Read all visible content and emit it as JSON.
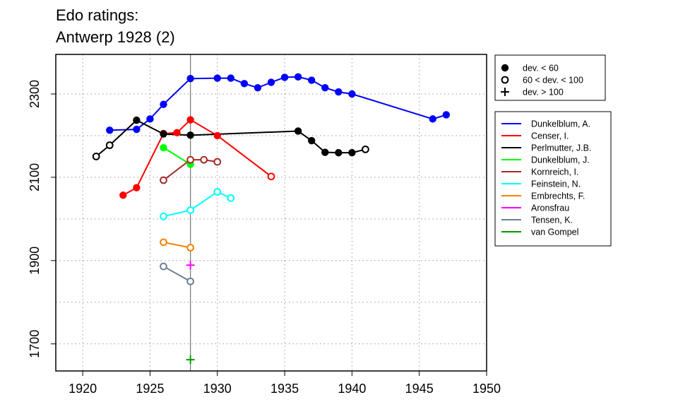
{
  "chart_data": {
    "type": "line",
    "title": [
      "Edo ratings:",
      "Antwerp 1928 (2)"
    ],
    "xlabel": "",
    "ylabel": "",
    "xlim": [
      1918,
      1950
    ],
    "ylim": [
      1635,
      2395
    ],
    "x_ticks": [
      1920,
      1925,
      1930,
      1935,
      1940,
      1945,
      1950
    ],
    "y_ticks": [
      1700,
      1900,
      2100,
      2300
    ],
    "grid": true,
    "marker_legend": {
      "placement": "top-right",
      "entries": [
        {
          "symbol": "filled",
          "label": "dev. < 60"
        },
        {
          "symbol": "open",
          "label": "60 < dev. < 100"
        },
        {
          "symbol": "plus",
          "label": "dev. > 100"
        }
      ]
    },
    "event_line": {
      "x": 1928,
      "color": "#808080"
    },
    "series_legend_placement": "right",
    "series": [
      {
        "name": "Dunkelblum, A.",
        "color": "#0000ff",
        "points": [
          {
            "x": 1922,
            "y": 2213,
            "m": "filled"
          },
          {
            "x": 1924,
            "y": 2215,
            "m": "filled"
          },
          {
            "x": 1925,
            "y": 2240,
            "m": "filled"
          },
          {
            "x": 1926,
            "y": 2275,
            "m": "filled"
          },
          {
            "x": 1928,
            "y": 2337,
            "m": "filled"
          },
          {
            "x": 1930,
            "y": 2338,
            "m": "filled"
          },
          {
            "x": 1931,
            "y": 2338,
            "m": "filled"
          },
          {
            "x": 1932,
            "y": 2325,
            "m": "filled"
          },
          {
            "x": 1933,
            "y": 2315,
            "m": "filled"
          },
          {
            "x": 1934,
            "y": 2328,
            "m": "filled"
          },
          {
            "x": 1935,
            "y": 2340,
            "m": "filled"
          },
          {
            "x": 1936,
            "y": 2341,
            "m": "filled"
          },
          {
            "x": 1937,
            "y": 2333,
            "m": "filled"
          },
          {
            "x": 1938,
            "y": 2315,
            "m": "filled"
          },
          {
            "x": 1939,
            "y": 2305,
            "m": "filled"
          },
          {
            "x": 1940,
            "y": 2300,
            "m": "filled"
          },
          {
            "x": 1946,
            "y": 2240,
            "m": "filled"
          },
          {
            "x": 1947,
            "y": 2250,
            "m": "filled"
          }
        ]
      },
      {
        "name": "Censer, I.",
        "color": "#ff0000",
        "points": [
          {
            "x": 1923,
            "y": 2057,
            "m": "filled"
          },
          {
            "x": 1924,
            "y": 2075,
            "m": "filled"
          },
          {
            "x": 1926,
            "y": 2205,
            "m": "filled"
          },
          {
            "x": 1927,
            "y": 2207,
            "m": "filled"
          },
          {
            "x": 1928,
            "y": 2238,
            "m": "filled"
          },
          {
            "x": 1930,
            "y": 2200,
            "m": "filled"
          },
          {
            "x": 1934,
            "y": 2102,
            "m": "open"
          }
        ]
      },
      {
        "name": "Perlmutter, J.B.",
        "color": "#000000",
        "points": [
          {
            "x": 1921,
            "y": 2150,
            "m": "open"
          },
          {
            "x": 1922,
            "y": 2177,
            "m": "open"
          },
          {
            "x": 1924,
            "y": 2237,
            "m": "filled"
          },
          {
            "x": 1926,
            "y": 2204,
            "m": "filled"
          },
          {
            "x": 1928,
            "y": 2201,
            "m": "filled"
          },
          {
            "x": 1936,
            "y": 2211,
            "m": "filled"
          },
          {
            "x": 1937,
            "y": 2188,
            "m": "filled"
          },
          {
            "x": 1938,
            "y": 2160,
            "m": "filled"
          },
          {
            "x": 1939,
            "y": 2159,
            "m": "filled"
          },
          {
            "x": 1940,
            "y": 2159,
            "m": "filled"
          },
          {
            "x": 1941,
            "y": 2167,
            "m": "open"
          }
        ]
      },
      {
        "name": "Dunkelblum, J.",
        "color": "#00ff00",
        "points": [
          {
            "x": 1926,
            "y": 2171,
            "m": "filled"
          },
          {
            "x": 1928,
            "y": 2131,
            "m": "filled"
          }
        ]
      },
      {
        "name": "Kornreich, I.",
        "color": "#a52a2a",
        "points": [
          {
            "x": 1926,
            "y": 2093,
            "m": "open"
          },
          {
            "x": 1928,
            "y": 2142,
            "m": "open"
          },
          {
            "x": 1929,
            "y": 2142,
            "m": "open"
          },
          {
            "x": 1930,
            "y": 2137,
            "m": "open"
          }
        ]
      },
      {
        "name": "Feinstein, N.",
        "color": "#00ffff",
        "points": [
          {
            "x": 1926,
            "y": 2006,
            "m": "open"
          },
          {
            "x": 1928,
            "y": 2021,
            "m": "open"
          },
          {
            "x": 1930,
            "y": 2065,
            "m": "open"
          },
          {
            "x": 1931,
            "y": 2050,
            "m": "open"
          }
        ]
      },
      {
        "name": "Embrechts, F.",
        "color": "#ff7f00",
        "points": [
          {
            "x": 1926,
            "y": 1944,
            "m": "open"
          },
          {
            "x": 1928,
            "y": 1931,
            "m": "open"
          }
        ]
      },
      {
        "name": "Aronsfrau",
        "color": "#ff00ff",
        "points": [
          {
            "x": 1928,
            "y": 1889,
            "m": "plus"
          }
        ]
      },
      {
        "name": "Tensen, K.",
        "color": "#708090",
        "points": [
          {
            "x": 1926,
            "y": 1886,
            "m": "open"
          },
          {
            "x": 1928,
            "y": 1850,
            "m": "open"
          }
        ]
      },
      {
        "name": "van Gompel",
        "color": "#009900",
        "points": [
          {
            "x": 1928,
            "y": 1662,
            "m": "plus"
          }
        ]
      }
    ]
  }
}
